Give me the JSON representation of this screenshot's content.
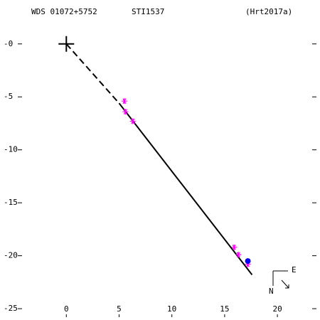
{
  "chart_data": {
    "type": "scatter",
    "labels": [
      "WDS 01072+5752",
      "STI1537",
      "(Hrt2017a)"
    ],
    "xlim": [
      -4.6,
      23.7
    ],
    "ylim": [
      -25.8,
      2.2
    ],
    "xticks": [
      0,
      5,
      10,
      15,
      20
    ],
    "yticks": [
      {
        "value": 0,
        "label": "-0"
      },
      -5,
      -10,
      -15,
      -20,
      -25
    ],
    "primary": {
      "x": 0,
      "y": 0,
      "color": "#000000"
    },
    "series": [
      {
        "style": "dashed",
        "color": "#000000",
        "x": [
          0,
          5.0
        ],
        "y": [
          0,
          -5.6
        ]
      },
      {
        "style": "solid",
        "color": "#000000",
        "x": [
          5.0,
          17.6
        ],
        "y": [
          -5.6,
          -21.8
        ]
      },
      {
        "style": "asterisk",
        "color": "#ff00ff",
        "x": [
          5.5,
          5.6,
          6.3,
          15.9,
          16.3,
          17.2
        ],
        "y": [
          -5.4,
          -6.4,
          -7.3,
          -19.2,
          -19.9,
          -20.8
        ]
      },
      {
        "style": "dot",
        "color": "#0000ff",
        "x": [
          17.2
        ],
        "y": [
          -20.5
        ]
      }
    ],
    "compass": {
      "north": "N",
      "east": "E"
    }
  }
}
